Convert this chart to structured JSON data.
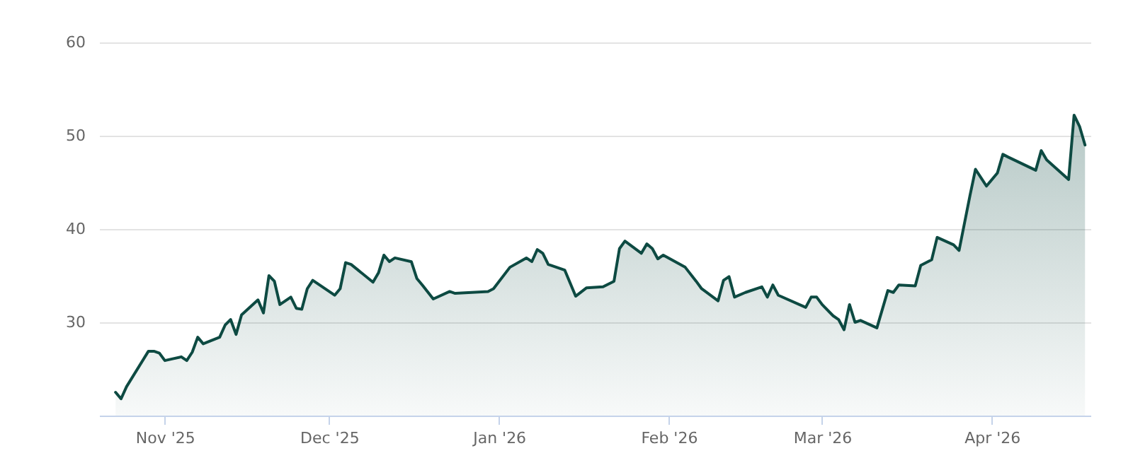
{
  "chart_data": {
    "type": "area",
    "x": [
      "2025-10-23",
      "2025-10-24",
      "2025-10-25",
      "2025-10-29",
      "2025-10-30",
      "2025-10-31",
      "2025-11-01",
      "2025-11-04",
      "2025-11-05",
      "2025-11-06",
      "2025-11-07",
      "2025-11-08",
      "2025-11-11",
      "2025-11-12",
      "2025-11-13",
      "2025-11-14",
      "2025-11-15",
      "2025-11-18",
      "2025-11-19",
      "2025-11-20",
      "2025-11-21",
      "2025-11-22",
      "2025-11-24",
      "2025-11-25",
      "2025-11-26",
      "2025-11-27",
      "2025-11-28",
      "2025-12-02",
      "2025-12-03",
      "2025-12-04",
      "2025-12-05",
      "2025-12-09",
      "2025-12-10",
      "2025-12-11",
      "2025-12-12",
      "2025-12-13",
      "2025-12-16",
      "2025-12-17",
      "2025-12-18",
      "2025-12-20",
      "2025-12-23",
      "2025-12-24",
      "2025-12-30",
      "2025-12-31",
      "2026-01-03",
      "2026-01-06",
      "2026-01-07",
      "2026-01-08",
      "2026-01-09",
      "2026-01-10",
      "2026-01-13",
      "2026-01-15",
      "2026-01-17",
      "2026-01-20",
      "2026-01-22",
      "2026-01-23",
      "2026-01-24",
      "2026-01-27",
      "2026-01-28",
      "2026-01-29",
      "2026-01-30",
      "2026-01-31",
      "2026-02-04",
      "2026-02-06",
      "2026-02-07",
      "2026-02-10",
      "2026-02-11",
      "2026-02-12",
      "2026-02-13",
      "2026-02-15",
      "2026-02-18",
      "2026-02-19",
      "2026-02-20",
      "2026-02-21",
      "2026-02-26",
      "2026-02-27",
      "2026-02-28",
      "2026-03-01",
      "2026-03-03",
      "2026-03-04",
      "2026-03-05",
      "2026-03-06",
      "2026-03-07",
      "2026-03-08",
      "2026-03-11",
      "2026-03-13",
      "2026-03-14",
      "2026-03-15",
      "2026-03-18",
      "2026-03-19",
      "2026-03-21",
      "2026-03-22",
      "2026-03-25",
      "2026-03-26",
      "2026-03-28",
      "2026-03-29",
      "2026-03-31",
      "2026-04-02",
      "2026-04-03",
      "2026-04-04",
      "2026-04-09",
      "2026-04-10",
      "2026-04-11",
      "2026-04-15",
      "2026-04-16",
      "2026-04-17",
      "2026-04-18"
    ],
    "series": [
      {
        "color": "#0d4a42",
        "values": [
          22.5,
          21.8,
          23.1,
          26.9,
          26.9,
          26.7,
          25.9,
          26.3,
          25.9,
          26.8,
          28.4,
          27.7,
          28.4,
          29.7,
          30.3,
          28.7,
          30.8,
          32.4,
          31.0,
          35.0,
          34.4,
          31.9,
          32.7,
          31.5,
          31.4,
          33.6,
          34.5,
          32.9,
          33.6,
          36.4,
          36.2,
          34.3,
          35.3,
          37.2,
          36.5,
          36.9,
          36.5,
          34.7,
          34.0,
          32.5,
          33.3,
          33.1,
          33.3,
          33.6,
          35.9,
          36.9,
          36.5,
          37.8,
          37.4,
          36.2,
          35.6,
          32.8,
          33.7,
          33.8,
          34.4,
          37.9,
          38.7,
          37.4,
          38.4,
          37.9,
          36.8,
          37.2,
          35.9,
          34.4,
          33.6,
          32.3,
          34.5,
          34.9,
          32.7,
          33.2,
          33.8,
          32.7,
          34.0,
          32.9,
          31.6,
          32.7,
          32.7,
          31.9,
          30.7,
          30.3,
          29.2,
          31.9,
          30.0,
          30.2,
          29.4,
          33.4,
          33.2,
          34.0,
          33.9,
          36.1,
          36.7,
          39.1,
          38.3,
          37.7,
          43.6,
          46.4,
          44.6,
          46.0,
          48.0,
          47.7,
          46.3,
          48.4,
          47.4,
          45.3,
          52.2,
          51.0,
          49.0
        ]
      }
    ],
    "xlim": [
      "2025-10-20",
      "2026-04-19"
    ],
    "xticks": [
      {
        "value": "2025-11-01",
        "label": "Nov '25"
      },
      {
        "value": "2025-12-01",
        "label": "Dec '25"
      },
      {
        "value": "2026-01-01",
        "label": "Jan '26"
      },
      {
        "value": "2026-02-01",
        "label": "Feb '26"
      },
      {
        "value": "2026-03-01",
        "label": "Mar '26"
      },
      {
        "value": "2026-04-01",
        "label": "Apr '26"
      }
    ],
    "ylim": [
      20,
      60
    ],
    "yticks": [
      30,
      40,
      50,
      60
    ],
    "grid": "y"
  }
}
